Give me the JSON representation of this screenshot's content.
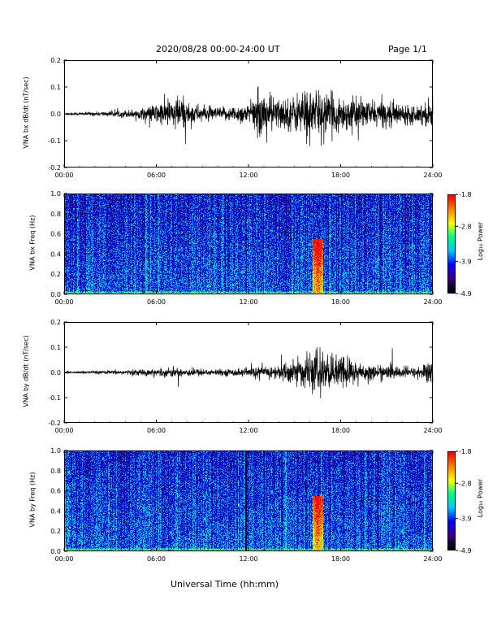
{
  "header": {
    "title": "2020/08/28  00:00-24:00 UT",
    "page": "Page 1/1"
  },
  "x_axis_label": "Universal Time (hh:mm)",
  "colors": {
    "trace": "#000000",
    "colormap": [
      "#000000",
      "#3a0080",
      "#0000ff",
      "#00c8ff",
      "#00ff80",
      "#ffff00",
      "#ff8000",
      "#ff0000"
    ]
  },
  "chart_data": [
    {
      "type": "line",
      "ylabel": "VNA bx dB/dt (nT/sec)",
      "xlim": [
        0,
        24
      ],
      "ylim": [
        -0.2,
        0.2
      ],
      "x_ticks": [
        "00:00",
        "06:00",
        "12:00",
        "18:00",
        "24:00"
      ],
      "y_ticks": [
        "-0.2",
        "-0.1",
        "0.0",
        "0.1",
        "0.2"
      ],
      "series": [
        {
          "x": [
            0,
            1,
            2,
            3,
            4,
            5,
            6,
            7,
            7.5,
            8,
            9,
            10,
            11,
            11.5,
            12,
            12.5,
            13,
            14,
            15,
            15.5,
            16,
            16.5,
            17,
            18,
            19,
            20,
            21,
            22,
            23,
            24
          ],
          "amplitude": [
            0.005,
            0.006,
            0.008,
            0.01,
            0.015,
            0.02,
            0.04,
            0.06,
            0.075,
            0.05,
            0.03,
            0.025,
            0.03,
            0.04,
            0.035,
            0.08,
            0.09,
            0.06,
            0.07,
            0.1,
            0.11,
            0.09,
            0.08,
            0.07,
            0.06,
            0.05,
            0.05,
            0.04,
            0.035,
            0.06
          ]
        }
      ]
    },
    {
      "type": "heatmap",
      "ylabel": "VNA bx Freq (Hz)",
      "xlim": [
        0,
        24
      ],
      "ylim": [
        0.0,
        1.0
      ],
      "x_ticks": [
        "00:00",
        "06:00",
        "12:00",
        "18:00",
        "24:00"
      ],
      "y_ticks": [
        "0.0",
        "0.2",
        "0.4",
        "0.6",
        "0.8",
        "1.0"
      ],
      "colorbar": {
        "label": "Log₁₀ Power",
        "range": [
          -4.9,
          -1.8
        ],
        "ticks": [
          "-1.8",
          "-2.8",
          "-3.9",
          "-4.9"
        ]
      },
      "features": [
        {
          "time": 16.5,
          "freq_max": 0.55,
          "level": -2.3
        }
      ]
    },
    {
      "type": "line",
      "ylabel": "VNA by dB/dt (nT/sec)",
      "xlim": [
        0,
        24
      ],
      "ylim": [
        -0.2,
        0.2
      ],
      "x_ticks": [
        "00:00",
        "06:00",
        "12:00",
        "18:00",
        "24:00"
      ],
      "y_ticks": [
        "-0.2",
        "-0.1",
        "0.0",
        "0.1",
        "0.2"
      ],
      "series": [
        {
          "x": [
            0,
            2,
            4,
            6,
            7,
            8,
            9,
            10,
            11,
            12,
            13,
            14,
            14.5,
            15,
            15.5,
            16,
            16.5,
            17,
            17.5,
            18,
            19,
            20,
            21,
            22,
            23,
            24
          ],
          "amplitude": [
            0.005,
            0.006,
            0.01,
            0.015,
            0.02,
            0.018,
            0.015,
            0.012,
            0.015,
            0.02,
            0.025,
            0.03,
            0.045,
            0.055,
            0.06,
            0.07,
            0.1,
            0.08,
            0.06,
            0.08,
            0.05,
            0.03,
            0.03,
            0.025,
            0.02,
            0.06
          ]
        }
      ]
    },
    {
      "type": "heatmap",
      "ylabel": "VNA by Freq (Hz)",
      "xlim": [
        0,
        24
      ],
      "ylim": [
        0.0,
        1.0
      ],
      "x_ticks": [
        "00:00",
        "06:00",
        "12:00",
        "18:00",
        "24:00"
      ],
      "y_ticks": [
        "0.0",
        "0.2",
        "0.4",
        "0.6",
        "0.8",
        "1.0"
      ],
      "colorbar": {
        "label": "Log₁₀ Power",
        "range": [
          -4.9,
          -1.8
        ],
        "ticks": [
          "-1.8",
          "-2.8",
          "-3.9",
          "-4.9"
        ]
      },
      "features": [
        {
          "time": 16.5,
          "freq_max": 0.55,
          "level": -2.4
        },
        {
          "time": 11.8,
          "freq_max": 1.0,
          "level": -4.9
        }
      ]
    }
  ]
}
